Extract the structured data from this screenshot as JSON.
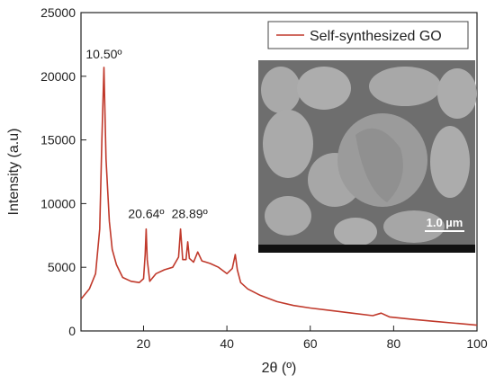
{
  "chart_data": {
    "type": "line",
    "xlabel": "2θ (º)",
    "ylabel": "Intensity (a.u)",
    "xlim": [
      5,
      100
    ],
    "ylim": [
      0,
      25000
    ],
    "x_ticks": [
      "20",
      "40",
      "60",
      "80",
      "100"
    ],
    "y_ticks": [
      "0",
      "5000",
      "10000",
      "15000",
      "20000",
      "25000"
    ],
    "grid": false,
    "legend_position": "top-right",
    "series": [
      {
        "name": "Self-synthesized GO",
        "color": "#c0392b",
        "x": [
          5,
          7,
          8.5,
          9.5,
          10.0,
          10.5,
          11.0,
          11.8,
          12.5,
          13.5,
          15,
          17,
          19,
          20.0,
          20.4,
          20.64,
          20.9,
          21.5,
          23,
          25,
          27,
          28.4,
          28.89,
          29.4,
          30.2,
          30.6,
          31.0,
          32.0,
          33.0,
          34,
          35,
          36,
          38,
          40,
          41.3,
          42.0,
          42.5,
          43.3,
          45,
          48,
          52,
          56,
          60,
          65,
          70,
          75,
          77,
          79,
          85,
          90,
          95,
          100
        ],
        "values": [
          2500,
          3300,
          4500,
          8000,
          15000,
          20700,
          13500,
          8600,
          6400,
          5200,
          4200,
          3900,
          3800,
          4100,
          6000,
          8000,
          5600,
          3900,
          4500,
          4800,
          5000,
          5800,
          8000,
          5600,
          5600,
          7000,
          5700,
          5400,
          6200,
          5500,
          5400,
          5300,
          5000,
          4500,
          4900,
          6000,
          4800,
          3800,
          3300,
          2800,
          2300,
          2000,
          1800,
          1600,
          1400,
          1200,
          1400,
          1100,
          900,
          750,
          600,
          450
        ]
      }
    ],
    "annotations": [
      {
        "text": "10.50º",
        "x": 10.5,
        "y": 20700
      },
      {
        "text": "20.64º",
        "x": 20.64,
        "y": 8000
      },
      {
        "text": "28.89º",
        "x": 28.89,
        "y": 8000
      }
    ]
  },
  "legend": {
    "label": "Self-synthesized GO"
  },
  "inset": {
    "scale_bar_label": "1.0 µm"
  },
  "peaks": [
    {
      "text": "10.50º"
    },
    {
      "text": "20.64º"
    },
    {
      "text": "28.89º"
    }
  ]
}
